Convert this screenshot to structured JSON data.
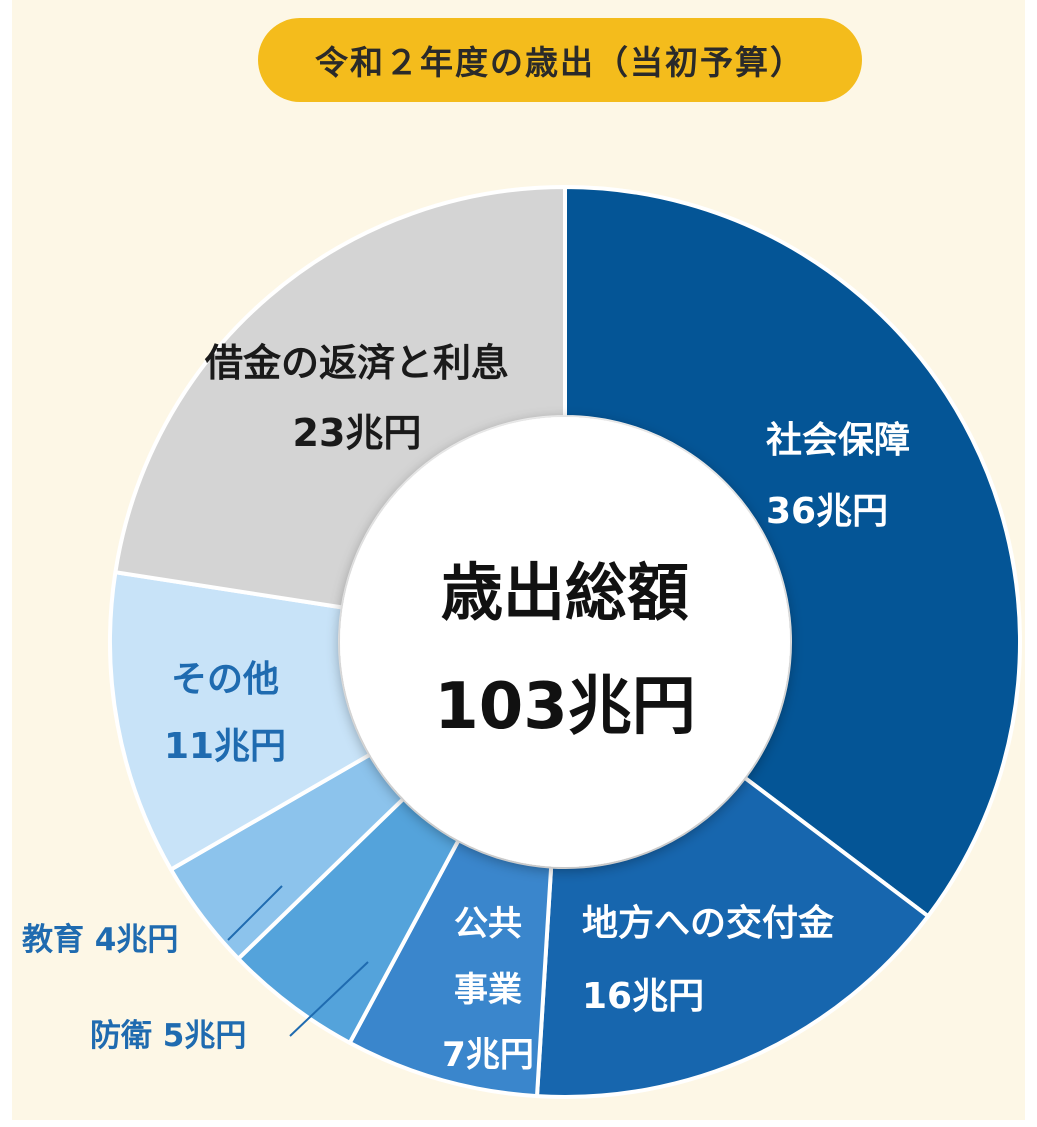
{
  "chart_data": {
    "type": "pie",
    "style": "donut",
    "title": "令和２年度の歳出（当初予算）",
    "center": {
      "label": "歳出総額",
      "value": "103兆円"
    },
    "unit": "兆円",
    "categories": [
      "社会保障",
      "地方への交付金",
      "公共事業",
      "防衛",
      "教育",
      "その他",
      "借金の返済と利息"
    ],
    "values": [
      36,
      16,
      7,
      5,
      4,
      11,
      23
    ],
    "slices": [
      {
        "name": "社会保障",
        "value": 36,
        "value_label": "36兆円",
        "color": "#045596",
        "label_color": "#ffffff"
      },
      {
        "name": "地方への交付金",
        "value": 16,
        "value_label": "16兆円",
        "color": "#1766ae",
        "label_color": "#ffffff"
      },
      {
        "name": "公共事業",
        "value": 7,
        "value_label": "7兆円",
        "color": "#3a86cc",
        "label_color": "#ffffff"
      },
      {
        "name": "防衛",
        "value": 5,
        "value_label": "5兆円",
        "color": "#54a3db",
        "label_color": "#1f6bb0"
      },
      {
        "name": "教育",
        "value": 4,
        "value_label": "4兆円",
        "color": "#8cc3ec",
        "label_color": "#1f6bb0"
      },
      {
        "name": "その他",
        "value": 11,
        "value_label": "11兆円",
        "color": "#c8e3f8",
        "label_color": "#1f6bb0"
      },
      {
        "name": "借金の返済と利息",
        "value": 23,
        "value_label": "23兆円",
        "color": "#d4d4d4",
        "label_color": "#1a1a1a"
      }
    ],
    "label_text": {
      "social": [
        "社会保障",
        "36兆円"
      ],
      "local": [
        "地方への交付金",
        "16兆円"
      ],
      "public": [
        "公共",
        "事業",
        "7兆円"
      ],
      "defense": "防衛 5兆円",
      "education": "教育 4兆円",
      "other": [
        "その他",
        "11兆円"
      ],
      "debt": [
        "借金の返済と利息",
        "23兆円"
      ]
    },
    "colors": {
      "background": "#fdf7e6",
      "title_bg": "#f4bc1c",
      "separator": "#ffffff",
      "center_text": "#111111"
    }
  }
}
